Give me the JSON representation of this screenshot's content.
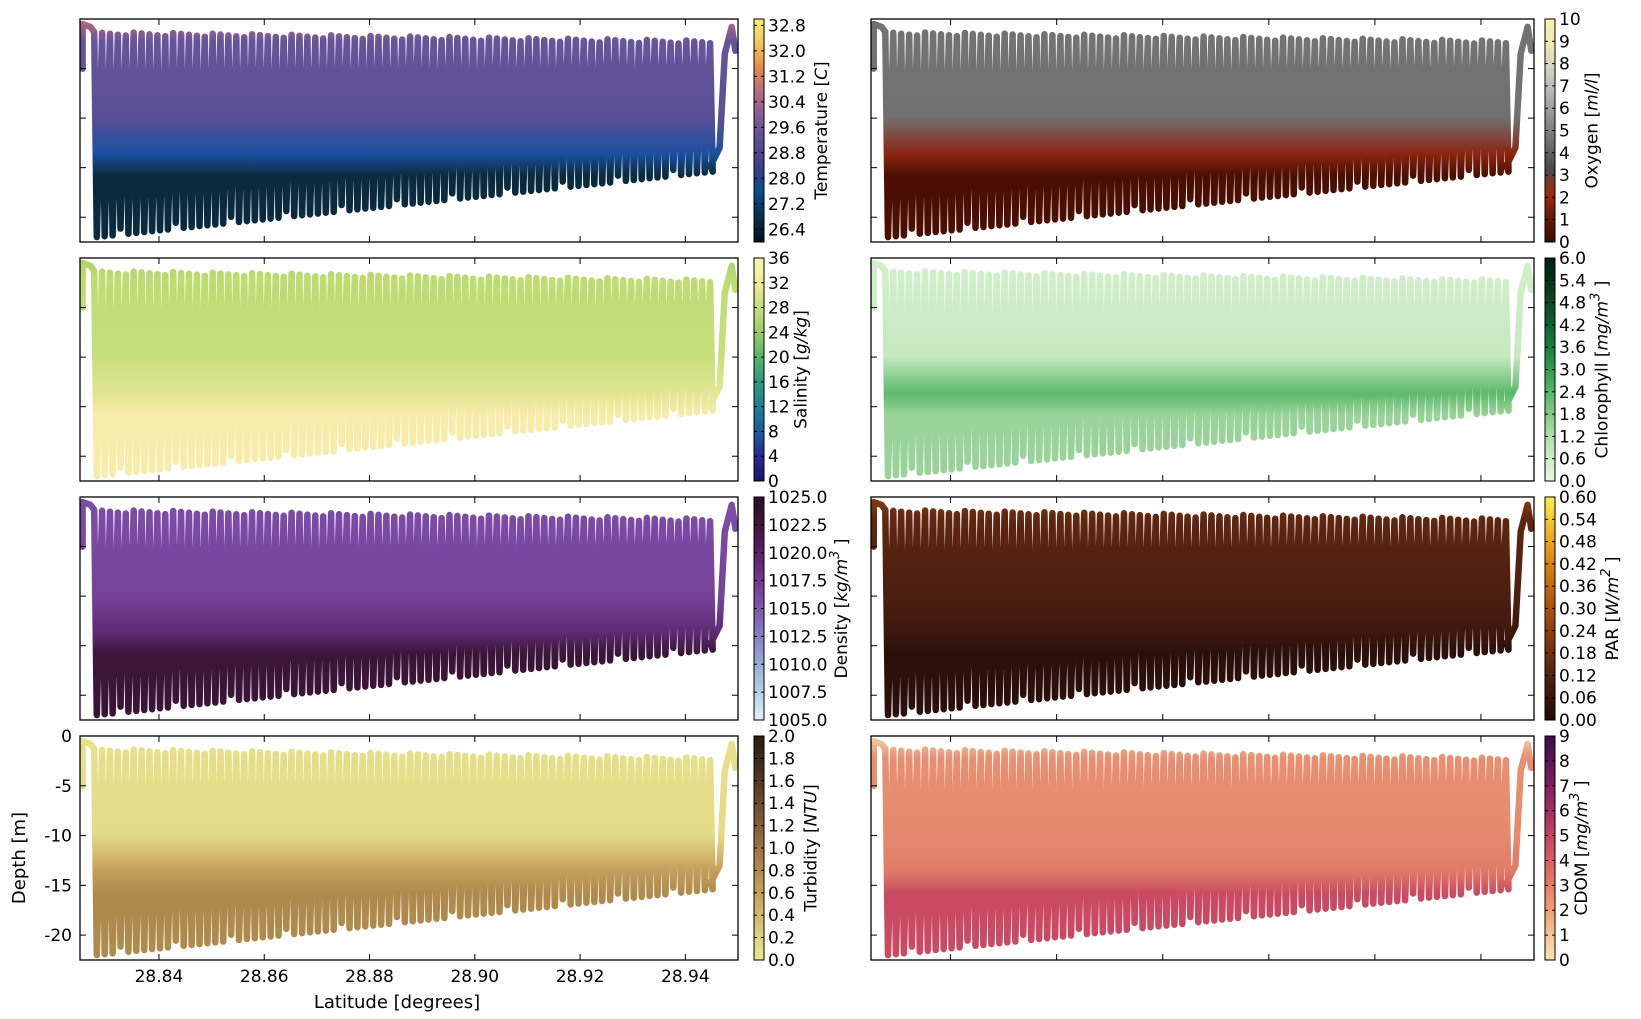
{
  "figure": {
    "xlabel": "Latitude [degrees]",
    "ylabel": "Depth [m]",
    "xticks": [
      "28.84",
      "28.86",
      "28.88",
      "28.90",
      "28.92",
      "28.94"
    ],
    "yticks": [
      "0",
      "-5",
      "-10",
      "-15",
      "-20"
    ]
  },
  "chart_data": [
    {
      "type": "scatter",
      "variable": "Temperature",
      "colorbar_label": "Temperature [C]",
      "xlim": [
        28.825,
        28.95
      ],
      "ylim": [
        -22.5,
        0
      ],
      "clim": [
        26.0,
        33.0
      ],
      "cticks": [
        "26.4",
        "27.2",
        "28.0",
        "28.8",
        "29.6",
        "30.4",
        "31.2",
        "32.0",
        "32.8"
      ],
      "colormap": [
        "#04121f",
        "#0b2d47",
        "#0b4c8a",
        "#3e3d87",
        "#5a4c96",
        "#7e5a95",
        "#b06d80",
        "#e08a4d",
        "#f3c55e",
        "#f6ef6a"
      ],
      "profile_colors": {
        "surface": "#c06a7a",
        "upper": "#66559a",
        "middle": "#5a4f96",
        "thermocline": "#1a4fa0",
        "bottom": "#0a2a3e"
      }
    },
    {
      "type": "scatter",
      "variable": "Oxygen",
      "colorbar_label": "Oxygen [ml/l]",
      "xlim": [
        28.825,
        28.95
      ],
      "ylim": [
        -22.5,
        0
      ],
      "clim": [
        0,
        10
      ],
      "cticks": [
        "0",
        "1",
        "2",
        "3",
        "4",
        "5",
        "6",
        "7",
        "8",
        "9",
        "10"
      ],
      "colormap": [
        "#3b0900",
        "#6a1a07",
        "#9d2a12",
        "#4a4a4a",
        "#6e6e6e",
        "#909090",
        "#b3b3b3",
        "#d3d3c4",
        "#ede9b6",
        "#f5f2b0"
      ],
      "profile_colors": {
        "surface": "#707070",
        "upper": "#737373",
        "middle": "#717171",
        "thermocline": "#8a2410",
        "bottom": "#4a0e03"
      }
    },
    {
      "type": "scatter",
      "variable": "Salinity",
      "colorbar_label": "Salinity [g/kg]",
      "xlim": [
        28.825,
        28.95
      ],
      "ylim": [
        -22.5,
        0
      ],
      "clim": [
        0,
        36
      ],
      "cticks": [
        "0",
        "4",
        "8",
        "12",
        "16",
        "20",
        "24",
        "28",
        "32",
        "36"
      ],
      "colormap": [
        "#1a1463",
        "#262a92",
        "#1f5a9e",
        "#1f7e8f",
        "#2e9a7c",
        "#5bb36a",
        "#9ccb6a",
        "#c9dd78",
        "#eeec9a",
        "#fdf6b4"
      ],
      "profile_colors": {
        "surface": "#aed36a",
        "upper": "#bddc72",
        "middle": "#c7df7d",
        "thermocline": "#e2e691",
        "bottom": "#f7ecaa"
      }
    },
    {
      "type": "scatter",
      "variable": "Chlorophyll",
      "colorbar_label": "Chlorophyll [mg/m^3 ]",
      "xlim": [
        28.825,
        28.95
      ],
      "ylim": [
        -22.5,
        0
      ],
      "clim": [
        0,
        6.0
      ],
      "cticks": [
        "0.0",
        "0.6",
        "1.2",
        "1.8",
        "2.4",
        "3.0",
        "3.6",
        "4.2",
        "4.8",
        "5.4",
        "6.0"
      ],
      "colormap": [
        "#e8f6e3",
        "#cdebc6",
        "#a6dba0",
        "#74c476",
        "#41ab5d",
        "#238b45",
        "#14693a",
        "#0c4d2a",
        "#08321c",
        "#061f12"
      ],
      "profile_colors": {
        "surface": "#d2efcd",
        "upper": "#cfeec9",
        "middle": "#c6e9c0",
        "thermocline": "#5db96a",
        "bottom": "#9ad39a"
      }
    },
    {
      "type": "scatter",
      "variable": "Density",
      "colorbar_label": "Density [kg/m^3 ]",
      "xlim": [
        28.825,
        28.95
      ],
      "ylim": [
        -22.5,
        0
      ],
      "clim": [
        1005.0,
        1025.0
      ],
      "cticks": [
        "1005.0",
        "1007.5",
        "1010.0",
        "1012.5",
        "1015.0",
        "1017.5",
        "1020.0",
        "1022.5",
        "1025.0"
      ],
      "colormap": [
        "#e6f1f6",
        "#b8d4e6",
        "#9eb5da",
        "#8a8fcb",
        "#7f6ab8",
        "#7a4aa0",
        "#6d2f82",
        "#531d5f",
        "#3b1439",
        "#2a0f24"
      ],
      "profile_colors": {
        "surface": "#7a4fa8",
        "upper": "#7b4ba6",
        "middle": "#76439b",
        "thermocline": "#5e2b74",
        "bottom": "#3a1538"
      }
    },
    {
      "type": "scatter",
      "variable": "PAR",
      "colorbar_label": "PAR [W/m^2 ]",
      "xlim": [
        28.825,
        28.95
      ],
      "ylim": [
        -22.5,
        0
      ],
      "clim": [
        0.0,
        0.6
      ],
      "cticks": [
        "0.00",
        "0.06",
        "0.12",
        "0.18",
        "0.24",
        "0.30",
        "0.36",
        "0.42",
        "0.48",
        "0.54",
        "0.60"
      ],
      "colormap": [
        "#1f0b08",
        "#3a150b",
        "#5a240f",
        "#7b3410",
        "#9a4710",
        "#b65e0e",
        "#cf7a0f",
        "#e39c18",
        "#f0c52c",
        "#f9f04a"
      ],
      "profile_colors": {
        "surface": "#8a3d12",
        "upper": "#5e2611",
        "middle": "#4c1e0f",
        "thermocline": "#3d180d",
        "bottom": "#2a0f0a"
      }
    },
    {
      "type": "scatter",
      "variable": "Turbidity",
      "colorbar_label": "Turbidity [NTU]",
      "xlim": [
        28.825,
        28.95
      ],
      "ylim": [
        -22.5,
        0
      ],
      "clim": [
        0.0,
        2.0
      ],
      "cticks": [
        "0.0",
        "0.2",
        "0.4",
        "0.6",
        "0.8",
        "1.0",
        "1.2",
        "1.4",
        "1.6",
        "1.8",
        "2.0"
      ],
      "colormap": [
        "#ebe68f",
        "#dcd07c",
        "#cdb46a",
        "#bf9a58",
        "#a9804a",
        "#8e683d",
        "#725232",
        "#573d27",
        "#3e2b1c",
        "#2a1d12"
      ],
      "profile_colors": {
        "surface": "#e8e18c",
        "upper": "#e6df8a",
        "middle": "#e4db86",
        "thermocline": "#c39e5b",
        "bottom": "#ae8a4c"
      }
    },
    {
      "type": "scatter",
      "variable": "CDOM",
      "colorbar_label": "CDOM [mg/m^3 ]",
      "xlim": [
        28.825,
        28.95
      ],
      "ylim": [
        -22.5,
        0
      ],
      "clim": [
        0,
        9
      ],
      "cticks": [
        "0",
        "1",
        "2",
        "3",
        "4",
        "5",
        "6",
        "7",
        "8",
        "9"
      ],
      "colormap": [
        "#fbe3b4",
        "#f6c494",
        "#ef9f78",
        "#e57d67",
        "#d85e61",
        "#c24562",
        "#a32f63",
        "#81205f",
        "#5c1655",
        "#3a0e45"
      ],
      "profile_colors": {
        "surface": "#f2d4a8",
        "upper": "#e88f72",
        "middle": "#e58a6e",
        "thermocline": "#e07a68",
        "bottom": "#c94a62"
      }
    }
  ]
}
